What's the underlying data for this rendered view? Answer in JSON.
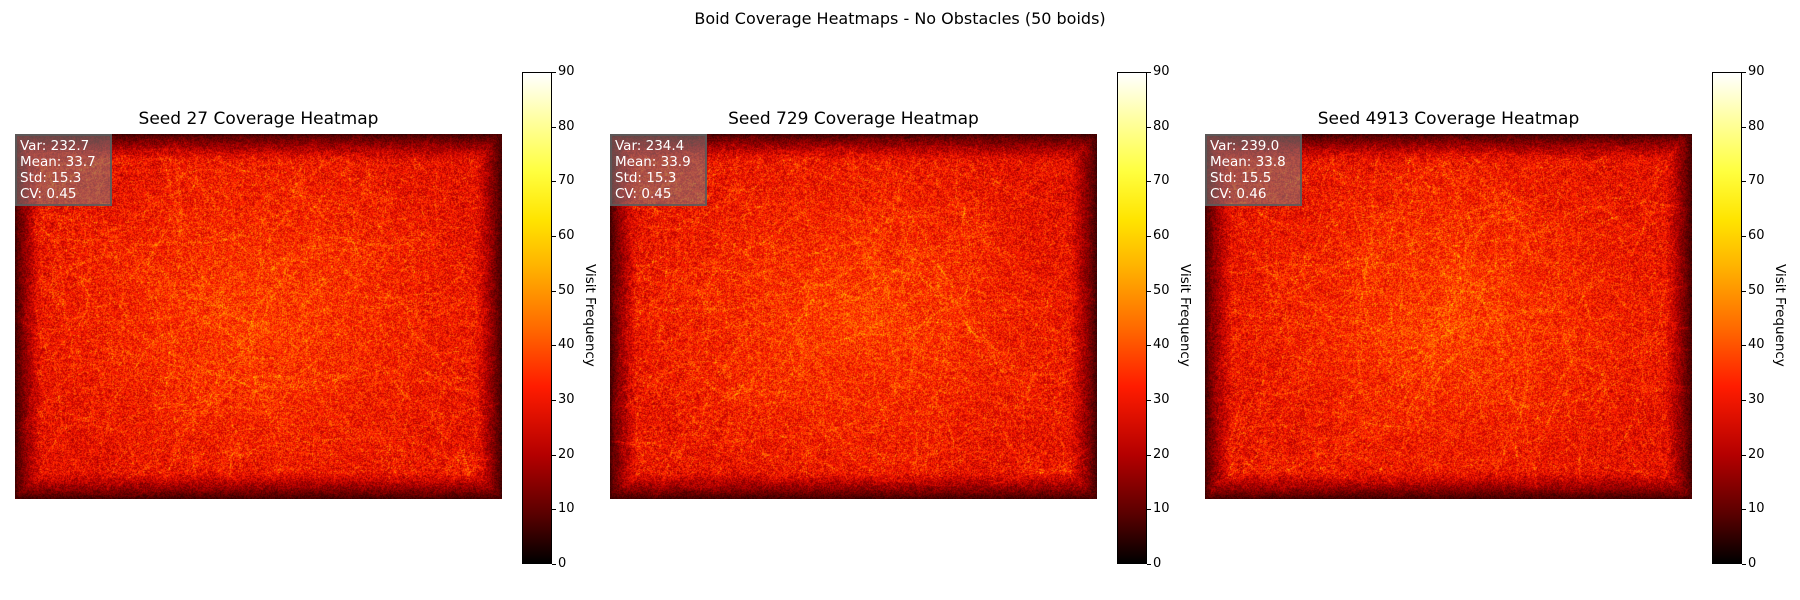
{
  "suptitle": "Boid Coverage Heatmaps - No Obstacles  (50 boids)",
  "colormap": "hot",
  "colorbar_label": "Visit Frequency",
  "colorbar_ticks": [
    "0",
    "10",
    "20",
    "30",
    "40",
    "50",
    "60",
    "70",
    "80",
    "90"
  ],
  "panels": [
    {
      "title": "Seed 27 Coverage Heatmap",
      "stats": [
        "Var: 232.7",
        "Mean: 33.7",
        "Std: 15.3",
        "CV: 0.45"
      ]
    },
    {
      "title": "Seed 729 Coverage Heatmap",
      "stats": [
        "Var: 234.4",
        "Mean: 33.9",
        "Std: 15.3",
        "CV: 0.45"
      ]
    },
    {
      "title": "Seed 4913 Coverage Heatmap",
      "stats": [
        "Var: 239.0",
        "Mean: 33.8",
        "Std: 15.5",
        "CV: 0.46"
      ]
    }
  ],
  "chart_data": [
    {
      "type": "heatmap",
      "title": "Seed 27 Coverage Heatmap",
      "colorbar_label": "Visit Frequency",
      "vmin": 0,
      "vmax": 90,
      "var": 232.7,
      "mean": 33.7,
      "std": 15.3,
      "cv": 0.45,
      "seed": 27
    },
    {
      "type": "heatmap",
      "title": "Seed 729 Coverage Heatmap",
      "colorbar_label": "Visit Frequency",
      "vmin": 0,
      "vmax": 90,
      "var": 234.4,
      "mean": 33.9,
      "std": 15.3,
      "cv": 0.45,
      "seed": 729
    },
    {
      "type": "heatmap",
      "title": "Seed 4913 Coverage Heatmap",
      "colorbar_label": "Visit Frequency",
      "vmin": 0,
      "vmax": 90,
      "var": 239.0,
      "mean": 33.8,
      "std": 15.5,
      "cv": 0.46,
      "seed": 4913
    }
  ]
}
